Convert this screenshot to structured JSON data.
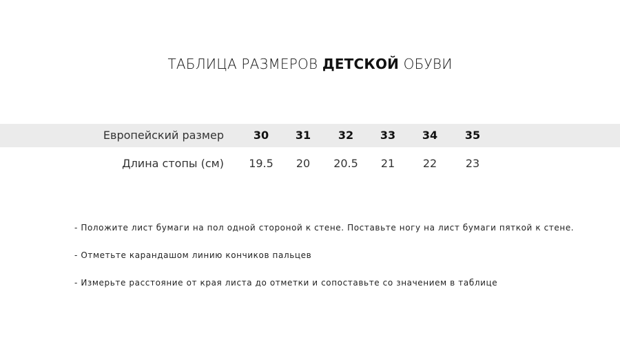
{
  "title": {
    "prefix": "ТАБЛИЦА РАЗМЕРОВ ",
    "bold": "ДЕТСКОЙ",
    "suffix": " ОБУВИ"
  },
  "table": {
    "rows": [
      {
        "label": "Европейский размер",
        "values": [
          "30",
          "31",
          "32",
          "33",
          "34",
          "35"
        ]
      },
      {
        "label": "Длина стопы (см)",
        "values": [
          "19.5",
          "20",
          "20.5",
          "21",
          "22",
          "23"
        ]
      }
    ],
    "band_color": "#ebebeb"
  },
  "instructions": [
    "- Положите лист бумаги на пол одной стороной к стене. Поставьте ногу на лист бумаги пяткой к стене.",
    "- Отметьте карандашом линию кончиков пальцев",
    "- Измерьте расстояние от края листа до отметки и сопоставьте со значением в таблице"
  ]
}
